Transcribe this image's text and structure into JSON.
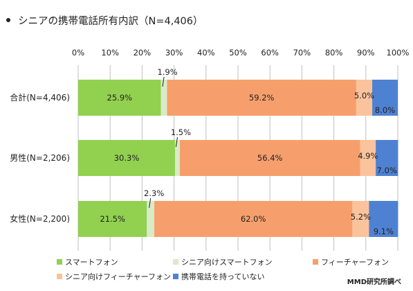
{
  "chart_data": {
    "type": "bar",
    "orientation": "horizontal",
    "stacked": true,
    "title": "シニアの携帯電話所有内訳（N=4,406）",
    "xlim": [
      0,
      100
    ],
    "x_ticks": [
      "0%",
      "10%",
      "20%",
      "30%",
      "40%",
      "50%",
      "60%",
      "70%",
      "80%",
      "90%",
      "100%"
    ],
    "grid": true,
    "legend_position": "bottom",
    "categories": [
      "合計(N=4,406)",
      "男性(N=2,206)",
      "女性(N=2,200)"
    ],
    "series": [
      {
        "name": "スマートフォン",
        "color": "#92D050",
        "values": [
          25.9,
          30.3,
          21.5
        ],
        "labels": [
          "25.9%",
          "30.3%",
          "21.5%"
        ]
      },
      {
        "name": "シニア向けスマートフォン",
        "color": "#D8EBC8",
        "values": [
          1.9,
          1.5,
          2.3
        ],
        "labels": [
          "1.9%",
          "1.5%",
          "2.3%"
        ]
      },
      {
        "name": "フィーチャーフォン",
        "color": "#F79F6C",
        "values": [
          59.2,
          56.4,
          62.0
        ],
        "labels": [
          "59.2%",
          "56.4%",
          "62.0%"
        ]
      },
      {
        "name": "シニア向けフィーチャーフォン",
        "color": "#FAC39C",
        "values": [
          5.0,
          4.9,
          5.2
        ],
        "labels": [
          "5.0%",
          "4.9%",
          "5.2%"
        ]
      },
      {
        "name": "携帯電話を持っていない",
        "color": "#4F81D2",
        "values": [
          8.0,
          7.0,
          9.1
        ],
        "labels": [
          "8.0%",
          "7.0%",
          "9.1%"
        ]
      }
    ],
    "source": "MMD研究所調べ"
  }
}
